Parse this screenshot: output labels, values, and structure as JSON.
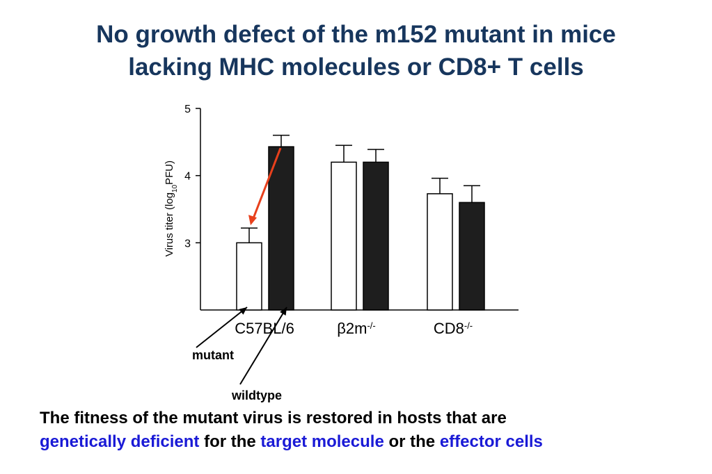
{
  "title": {
    "line1": "No growth defect of the m152 mutant in mice",
    "line2": "lacking MHC molecules or CD8+ T cells",
    "color": "#17365d"
  },
  "chart_data": {
    "type": "bar",
    "ylabel_parts": [
      "Virus titer (log",
      "10",
      "PFU)"
    ],
    "ylim": [
      2,
      5
    ],
    "yticks": [
      3,
      4,
      5
    ],
    "groups": [
      {
        "label": "C57BL/6",
        "sup": ""
      },
      {
        "label": "β2m",
        "sup": "-/-"
      },
      {
        "label": "CD8",
        "sup": "-/-"
      }
    ],
    "series": [
      {
        "name": "mutant",
        "fill": "#ffffff",
        "values": [
          3.0,
          4.2,
          3.73
        ],
        "errors": [
          0.22,
          0.25,
          0.23
        ]
      },
      {
        "name": "wildtype",
        "fill": "#1e1e1e",
        "values": [
          4.43,
          4.2,
          3.6
        ],
        "errors": [
          0.17,
          0.19,
          0.25
        ]
      }
    ],
    "highlight_arrow_color": "#e8401c"
  },
  "caption": {
    "line1": "The fitness of the mutant virus is restored in hosts that are",
    "seg1": "genetically deficient",
    "seg2": " for the ",
    "seg3": "target molecule",
    "seg4": " or the ",
    "seg5": "effector cells",
    "highlight_color": "#1a1ad6"
  }
}
